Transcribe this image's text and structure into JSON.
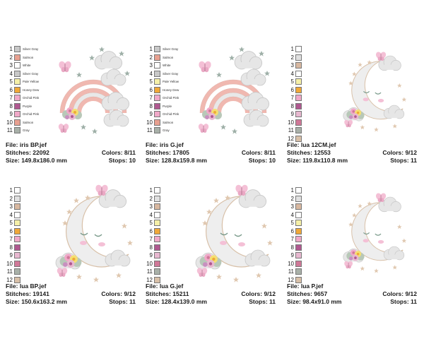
{
  "cards": [
    {
      "art": "rainbow",
      "colors": [
        {
          "num": "1",
          "hex": "#c8c8c8",
          "name": "Silver Gray"
        },
        {
          "num": "2",
          "hex": "#e8a090",
          "name": "Salmon"
        },
        {
          "num": "3",
          "hex": "#ffffff",
          "name": "White"
        },
        {
          "num": "4",
          "hex": "#c8c8c8",
          "name": "Silver Gray"
        },
        {
          "num": "5",
          "hex": "#f5f0a8",
          "name": "Pale Yellow"
        },
        {
          "num": "6",
          "hex": "#f0a838",
          "name": "Honey Dew"
        },
        {
          "num": "7",
          "hex": "#f0a8c8",
          "name": "Orchid Pink"
        },
        {
          "num": "8",
          "hex": "#b05890",
          "name": "Purple"
        },
        {
          "num": "9",
          "hex": "#f0a8c8",
          "name": "Orchid Pink"
        },
        {
          "num": "10",
          "hex": "#e8a090",
          "name": "Salmon"
        },
        {
          "num": "11",
          "hex": "#a8b0a8",
          "name": "Gray"
        }
      ],
      "file": "File: iris BP.jef",
      "stitches": "Stitches: 22092",
      "colors_count": "Colors: 8/11",
      "size": "Size: 149.8x186.0 mm",
      "stops": "Stops: 10"
    },
    {
      "art": "rainbow",
      "colors": [
        {
          "num": "1",
          "hex": "#c8c8c8",
          "name": "Silver Gray"
        },
        {
          "num": "2",
          "hex": "#e8a090",
          "name": "Salmon"
        },
        {
          "num": "3",
          "hex": "#ffffff",
          "name": "White"
        },
        {
          "num": "4",
          "hex": "#c8c8c8",
          "name": "Silver Gray"
        },
        {
          "num": "5",
          "hex": "#f5f0a8",
          "name": "Pale Yellow"
        },
        {
          "num": "6",
          "hex": "#f0a838",
          "name": "Honey Dew"
        },
        {
          "num": "7",
          "hex": "#f0a8c8",
          "name": "Orchid Pink"
        },
        {
          "num": "8",
          "hex": "#b05890",
          "name": "Purple"
        },
        {
          "num": "9",
          "hex": "#f0a8c8",
          "name": "Orchid Pink"
        },
        {
          "num": "10",
          "hex": "#e8a090",
          "name": "Salmon"
        },
        {
          "num": "11",
          "hex": "#a8b0a8",
          "name": "Gray"
        }
      ],
      "file": "File: iris G.jef",
      "stitches": "Stitches: 17805",
      "colors_count": "Colors: 8/11",
      "size": "Size: 128.8x159.8 mm",
      "stops": "Stops: 10"
    },
    {
      "art": "moon-small",
      "colors": [
        {
          "num": "1",
          "hex": "#ffffff",
          "name": ""
        },
        {
          "num": "2",
          "hex": "#e0e0e0",
          "name": ""
        },
        {
          "num": "3",
          "hex": "#d8b8a0",
          "name": ""
        },
        {
          "num": "4",
          "hex": "#ffffff",
          "name": ""
        },
        {
          "num": "5",
          "hex": "#f5f0a8",
          "name": ""
        },
        {
          "num": "6",
          "hex": "#f0a838",
          "name": ""
        },
        {
          "num": "7",
          "hex": "#f0a8c8",
          "name": ""
        },
        {
          "num": "8",
          "hex": "#b05890",
          "name": ""
        },
        {
          "num": "9",
          "hex": "#e8b8d0",
          "name": ""
        },
        {
          "num": "10",
          "hex": "#d07898",
          "name": ""
        },
        {
          "num": "11",
          "hex": "#a8b0a8",
          "name": ""
        },
        {
          "num": "12",
          "hex": "#d8c0a8",
          "name": ""
        }
      ],
      "file": "File: lua 12CM.jef",
      "stitches": "Stitches: 12553",
      "colors_count": "Colors: 9/12",
      "size": "Size: 119.8x110.8 mm",
      "stops": "Stops: 11"
    },
    {
      "art": "moon",
      "colors": [
        {
          "num": "1",
          "hex": "#ffffff",
          "name": ""
        },
        {
          "num": "2",
          "hex": "#e0e0e0",
          "name": ""
        },
        {
          "num": "3",
          "hex": "#d8b8a0",
          "name": ""
        },
        {
          "num": "4",
          "hex": "#ffffff",
          "name": ""
        },
        {
          "num": "5",
          "hex": "#f5f0a8",
          "name": ""
        },
        {
          "num": "6",
          "hex": "#f0a838",
          "name": ""
        },
        {
          "num": "7",
          "hex": "#f0a8c8",
          "name": ""
        },
        {
          "num": "8",
          "hex": "#b05890",
          "name": ""
        },
        {
          "num": "9",
          "hex": "#e8b8d0",
          "name": ""
        },
        {
          "num": "10",
          "hex": "#d07898",
          "name": ""
        },
        {
          "num": "11",
          "hex": "#a8b0a8",
          "name": ""
        },
        {
          "num": "12",
          "hex": "#d8c0a8",
          "name": ""
        }
      ],
      "file": "File: lua BP.jef",
      "stitches": "Stitches: 19141",
      "colors_count": "Colors: 9/12",
      "size": "Size: 150.6x163.2 mm",
      "stops": "Stops: 11"
    },
    {
      "art": "moon",
      "colors": [
        {
          "num": "1",
          "hex": "#ffffff",
          "name": ""
        },
        {
          "num": "2",
          "hex": "#e0e0e0",
          "name": ""
        },
        {
          "num": "3",
          "hex": "#d8b8a0",
          "name": ""
        },
        {
          "num": "4",
          "hex": "#ffffff",
          "name": ""
        },
        {
          "num": "5",
          "hex": "#f5f0a8",
          "name": ""
        },
        {
          "num": "6",
          "hex": "#f0a838",
          "name": ""
        },
        {
          "num": "7",
          "hex": "#f0a8c8",
          "name": ""
        },
        {
          "num": "8",
          "hex": "#b05890",
          "name": ""
        },
        {
          "num": "9",
          "hex": "#e8b8d0",
          "name": ""
        },
        {
          "num": "10",
          "hex": "#d07898",
          "name": ""
        },
        {
          "num": "11",
          "hex": "#a8b0a8",
          "name": ""
        },
        {
          "num": "12",
          "hex": "#d8c0a8",
          "name": ""
        }
      ],
      "file": "File: lua G.jef",
      "stitches": "Stitches: 15211",
      "colors_count": "Colors: 9/12",
      "size": "Size: 128.4x139.0 mm",
      "stops": "Stops: 11"
    },
    {
      "art": "moon-small",
      "colors": [
        {
          "num": "1",
          "hex": "#ffffff",
          "name": ""
        },
        {
          "num": "2",
          "hex": "#e0e0e0",
          "name": ""
        },
        {
          "num": "3",
          "hex": "#d8b8a0",
          "name": ""
        },
        {
          "num": "4",
          "hex": "#ffffff",
          "name": ""
        },
        {
          "num": "5",
          "hex": "#f5f0a8",
          "name": ""
        },
        {
          "num": "6",
          "hex": "#f0a838",
          "name": ""
        },
        {
          "num": "7",
          "hex": "#f0a8c8",
          "name": ""
        },
        {
          "num": "8",
          "hex": "#b05890",
          "name": ""
        },
        {
          "num": "9",
          "hex": "#e8b8d0",
          "name": ""
        },
        {
          "num": "10",
          "hex": "#d07898",
          "name": ""
        },
        {
          "num": "11",
          "hex": "#a8b0a8",
          "name": ""
        },
        {
          "num": "12",
          "hex": "#d8c0a8",
          "name": ""
        }
      ],
      "file": "File: lua P.jef",
      "stitches": "Stitches: 9657",
      "colors_count": "Colors: 9/12",
      "size": "Size: 98.4x91.0 mm",
      "stops": "Stops: 11"
    }
  ]
}
